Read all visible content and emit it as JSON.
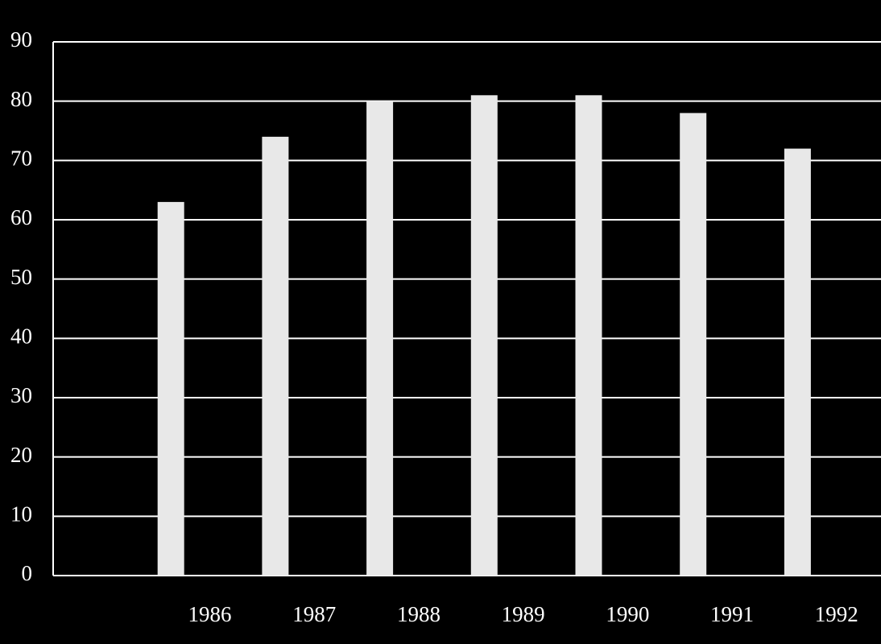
{
  "chart_data": {
    "type": "bar",
    "categories": [
      "1986",
      "1987",
      "1988",
      "1989",
      "1990",
      "1991",
      "1992"
    ],
    "values": [
      63,
      74,
      80,
      81,
      81,
      78,
      72
    ],
    "color": "#e8e8e8",
    "ylim": [
      0,
      90
    ],
    "yticks": [
      0,
      10,
      20,
      30,
      40,
      50,
      60,
      70,
      80,
      90
    ],
    "grid": true
  }
}
